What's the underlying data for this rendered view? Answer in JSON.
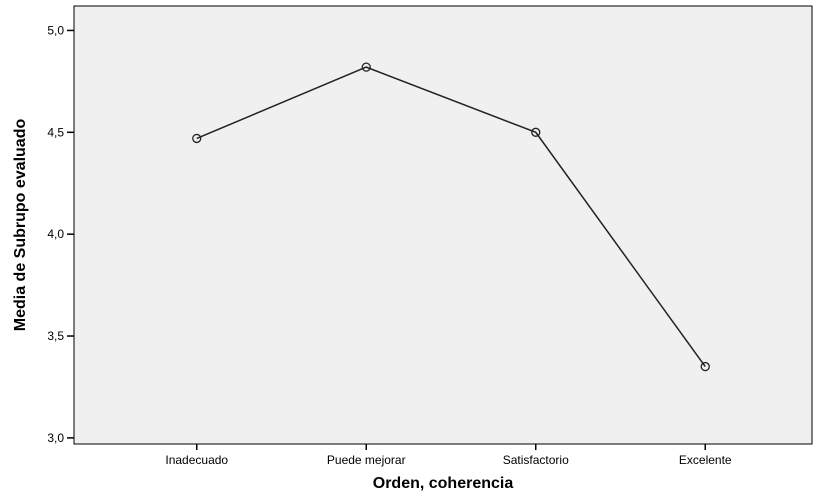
{
  "chart_data": {
    "type": "line",
    "title": "",
    "xlabel": "Orden, coherencia",
    "ylabel": "Media de Subrupo evaluado",
    "categories": [
      "Inadecuado",
      "Puede mejorar",
      "Satisfactorio",
      "Excelente"
    ],
    "values": [
      4.47,
      4.82,
      4.5,
      3.35
    ],
    "ylim": [
      2.97,
      5.12
    ],
    "yticks": [
      "3,0",
      "3,5",
      "4,0",
      "4,5",
      "5,0"
    ],
    "ytick_values": [
      3.0,
      3.5,
      4.0,
      4.5,
      5.0
    ],
    "grid": false,
    "legend": "none",
    "colors": {
      "plot_background": "#f0f0f0",
      "line": "#222222",
      "frame": "#000000"
    }
  }
}
